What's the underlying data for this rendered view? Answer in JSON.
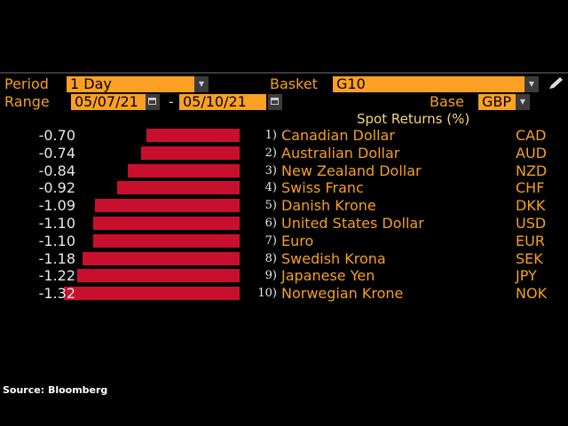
{
  "toolbar": {
    "period_label": "Period",
    "period_value": "1 Day",
    "basket_label": "Basket",
    "basket_value": "G10",
    "range_label": "Range",
    "range_start": "05/07/21",
    "range_sep": "-",
    "range_end": "05/10/21",
    "base_label": "Base",
    "base_value": "GBP"
  },
  "chart_data": {
    "type": "bar",
    "title": "Spot Returns (%)",
    "categories": [
      "Canadian Dollar",
      "Australian Dollar",
      "New Zealand Dollar",
      "Swiss Franc",
      "Danish Krone",
      "United States Dollar",
      "Euro",
      "Swedish Krona",
      "Japanese Yen",
      "Norwegian Krone"
    ],
    "ranks": [
      "1)",
      "2)",
      "3)",
      "4)",
      "5)",
      "6)",
      "7)",
      "8)",
      "9)",
      "10)"
    ],
    "codes": [
      "CAD",
      "AUD",
      "NZD",
      "CHF",
      "DKK",
      "USD",
      "EUR",
      "SEK",
      "JPY",
      "NOK"
    ],
    "values": [
      -0.7,
      -0.74,
      -0.84,
      -0.92,
      -1.09,
      -1.1,
      -1.1,
      -1.18,
      -1.22,
      -1.32
    ],
    "labels": [
      "-0.70",
      "-0.74",
      "-0.84",
      "-0.92",
      "-1.09",
      "-1.10",
      "-1.10",
      "-1.18",
      "-1.22",
      "-1.32"
    ],
    "bar_color": "#c8102e"
  },
  "source": "Source: Bloomberg"
}
